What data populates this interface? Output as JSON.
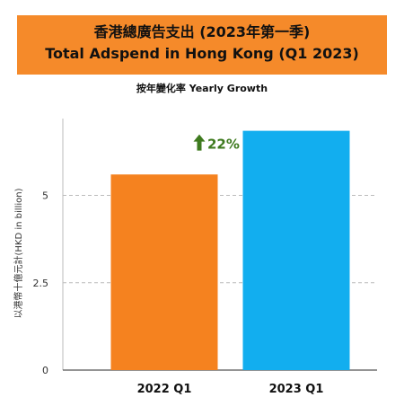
{
  "header": {
    "title_zh": "香港總廣告支出 (2023年第一季)",
    "title_en": "Total Adspend in Hong Kong (Q1 2023)",
    "subtitle": "按年變化率 Yearly Growth"
  },
  "colors": {
    "banner": "#F58A2A",
    "bar_2022": "#F5821F",
    "bar_2023": "#12AEEF",
    "growth": "#3E7A1E",
    "grid": "#BBBBBB"
  },
  "chart_data": {
    "type": "bar",
    "categories": [
      "2022 Q1",
      "2023 Q1"
    ],
    "values": [
      5.6,
      6.85
    ],
    "ylabel": "以港幣十億元計(HKD in billion)",
    "ylim": [
      0,
      7.2
    ],
    "yticks": [
      0,
      2.5,
      5
    ],
    "ytick_labels": [
      "0",
      "2.5",
      "5"
    ],
    "grid": true,
    "grid_style": "dashed",
    "legend": "none",
    "annotation": {
      "text": "22%",
      "icon": "up-arrow-icon"
    }
  }
}
